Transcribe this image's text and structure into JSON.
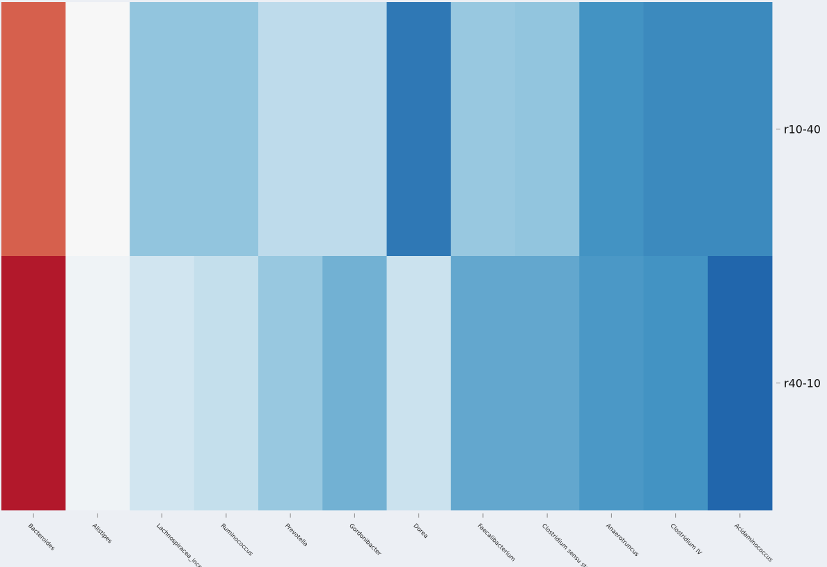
{
  "chart_data": {
    "type": "heatmap",
    "colormap": "RdBu",
    "value_scale": "normalized 0-1 (0 = red, 0.5 = white, 1 = blue)",
    "rows": [
      "r10-40",
      "r40-10"
    ],
    "columns": [
      "Bacteroides",
      "Alistipes",
      "Lachnospiracea_incertae_sedis",
      "Ruminococcus",
      "Prevotella",
      "Gordonibacter",
      "Dorea",
      "Faecalibacterium",
      "Clostridium sensu stricto",
      "Anaerotruncus",
      "Clostridium IV",
      "Acidaminococcus"
    ],
    "values": [
      [
        0.2,
        0.5,
        0.7,
        0.7,
        0.63,
        0.63,
        0.86,
        0.69,
        0.7,
        0.8,
        0.82,
        0.82
      ],
      [
        0.1,
        0.52,
        0.6,
        0.62,
        0.69,
        0.74,
        0.61,
        0.76,
        0.76,
        0.79,
        0.8,
        0.9
      ]
    ],
    "grid": false,
    "legend": "none",
    "background": "#eceff4"
  }
}
